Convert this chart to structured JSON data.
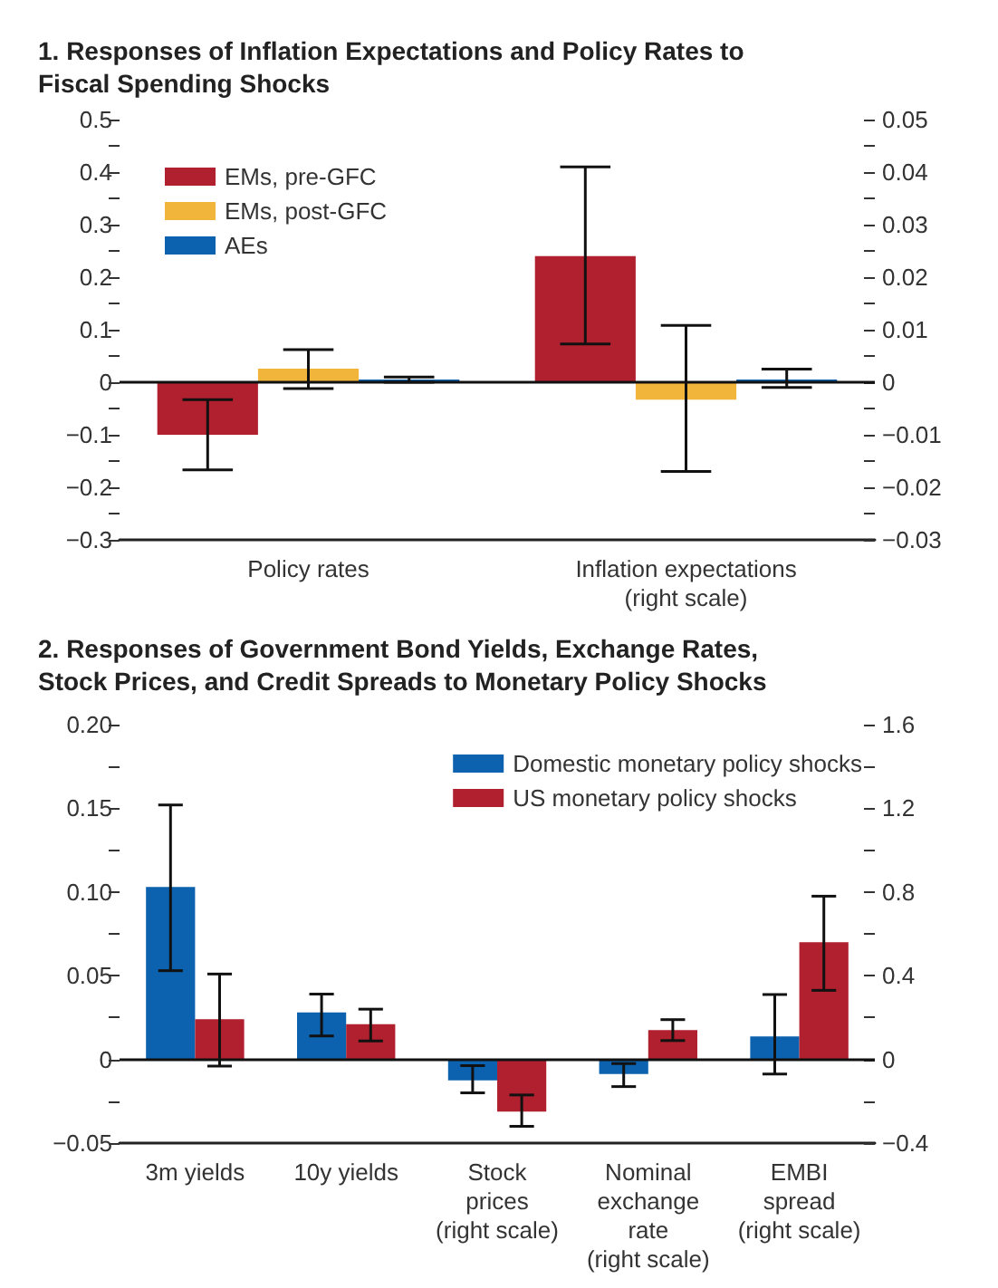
{
  "chart_data": [
    {
      "type": "bar",
      "title": "1. Responses of Inflation Expectations and Policy Rates to\nFiscal Spending Shocks",
      "categories": [
        "Policy rates",
        "Inflation expectations\n(right scale)"
      ],
      "series": [
        {
          "name": "EMs, pre-GFC",
          "color": "#b0202e",
          "values": [
            -0.1,
            null
          ],
          "errors": [
            [
              -0.167,
              -0.033
            ],
            null
          ]
        },
        {
          "name": "EMs, post-GFC",
          "color": "#f2b53b",
          "values": [
            0.026,
            null
          ],
          "errors": [
            [
              -0.012,
              0.062
            ],
            null
          ]
        },
        {
          "name": "AEs",
          "color": "#0c62ae",
          "values": [
            0.005,
            null
          ],
          "errors": [
            [
              0,
              0.01
            ],
            null
          ]
        },
        {
          "color": "#b0202e",
          "axis": "y2",
          "values": [
            null,
            0.024
          ],
          "errors": [
            null,
            [
              0.0073,
              0.041
            ]
          ]
        },
        {
          "color": "#f2b53b",
          "axis": "y2",
          "values": [
            null,
            -0.0033
          ],
          "errors": [
            null,
            [
              -0.017,
              0.0108
            ]
          ]
        },
        {
          "color": "#0c62ae",
          "axis": "y2",
          "values": [
            null,
            0.0005
          ],
          "errors": [
            null,
            [
              -0.001,
              0.0025
            ]
          ]
        }
      ],
      "ylim": [
        -0.3,
        0.5
      ],
      "yticks": [
        {
          "value": -0.3,
          "label": "−0.3"
        },
        {
          "value": -0.25,
          "label": null
        },
        {
          "value": -0.2,
          "label": "−0.2"
        },
        {
          "value": -0.15,
          "label": null
        },
        {
          "value": -0.1,
          "label": "−0.1"
        },
        {
          "value": -0.05,
          "label": null
        },
        0,
        {
          "value": 0.05,
          "label": null
        },
        0.1,
        {
          "value": 0.15,
          "label": null
        },
        0.2,
        {
          "value": 0.25,
          "label": null
        },
        0.3,
        {
          "value": 0.35,
          "label": null
        },
        0.4,
        {
          "value": 0.45,
          "label": null
        },
        0.5
      ],
      "y2lim": [
        -0.03,
        0.05
      ],
      "y2ticks": [
        {
          "value": -0.03,
          "label": "−0.03"
        },
        {
          "value": -0.025,
          "label": null
        },
        {
          "value": -0.02,
          "label": "−0.02"
        },
        {
          "value": -0.015,
          "label": null
        },
        {
          "value": -0.01,
          "label": "−0.01"
        },
        {
          "value": -0.005,
          "label": null
        },
        0,
        {
          "value": 0.005,
          "label": null
        },
        0.01,
        {
          "value": 0.015,
          "label": null
        },
        0.02,
        {
          "value": 0.025,
          "label": null
        },
        0.03,
        {
          "value": 0.035,
          "label": null
        },
        0.04,
        {
          "value": 0.045,
          "label": null
        },
        0.05
      ],
      "ref_lines": [
        {
          "axis": "y",
          "value": 0,
          "color": "#111111"
        }
      ],
      "legend": "top left",
      "grid": false
    },
    {
      "type": "bar",
      "title": "2. Responses of Government Bond Yields, Exchange Rates,\nStock Prices, and Credit Spreads to Monetary Policy Shocks",
      "categories": [
        "3m yields",
        "10y yields",
        "Stock\nprices\n(right scale)",
        "Nominal\nexchange\nrate\n(right scale)",
        "EMBI\nspread\n(right scale)"
      ],
      "series": [
        {
          "name": "Domestic monetary policy shocks",
          "color": "#0c62ae",
          "values": [
            0.103,
            0.028,
            null,
            null,
            null
          ],
          "errors": [
            [
              0.053,
              0.152
            ],
            [
              0.014,
              0.039
            ],
            null,
            null,
            null
          ]
        },
        {
          "name": "US monetary policy shocks",
          "color": "#b0202e",
          "values": [
            0.024,
            0.021,
            null,
            null,
            null
          ],
          "errors": [
            [
              -0.004,
              0.051
            ],
            [
              0.011,
              0.03
            ],
            null,
            null,
            null
          ]
        },
        {
          "color": "#0c62ae",
          "axis": "y2",
          "values": [
            null,
            null,
            -0.1,
            -0.07,
            0.11
          ],
          "errors": [
            null,
            null,
            [
              -0.16,
              -0.03
            ],
            [
              -0.13,
              -0.02
            ],
            [
              -0.07,
              0.31
            ]
          ]
        },
        {
          "color": "#b0202e",
          "axis": "y2",
          "values": [
            null,
            null,
            -0.25,
            0.14,
            0.56
          ],
          "errors": [
            null,
            null,
            [
              -0.32,
              -0.17
            ],
            [
              0.09,
              0.19
            ],
            [
              0.33,
              0.78
            ]
          ]
        }
      ],
      "ylim": [
        -0.05,
        0.2
      ],
      "yticks": [
        {
          "value": -0.05,
          "label": "−0.05"
        },
        {
          "value": -0.025,
          "label": null
        },
        0,
        {
          "value": 0.025,
          "label": null
        },
        0.05,
        {
          "value": 0.075,
          "label": null
        },
        {
          "value": 0.1,
          "label": "0.10"
        },
        {
          "value": 0.125,
          "label": null
        },
        0.15,
        {
          "value": 0.175,
          "label": null
        },
        {
          "value": 0.2,
          "label": "0.20"
        }
      ],
      "y2lim": [
        -0.4,
        1.6
      ],
      "y2ticks": [
        {
          "value": -0.4,
          "label": "−0.4"
        },
        {
          "value": -0.2,
          "label": null
        },
        0,
        {
          "value": 0.2,
          "label": null
        },
        0.4,
        {
          "value": 0.6,
          "label": null
        },
        0.8,
        {
          "value": 1.0,
          "label": null
        },
        1.2,
        {
          "value": 1.4,
          "label": null
        },
        1.6
      ],
      "ref_lines": [
        {
          "axis": "y",
          "value": 0,
          "color": "#111111"
        }
      ],
      "legend": "top right",
      "grid": false
    }
  ]
}
